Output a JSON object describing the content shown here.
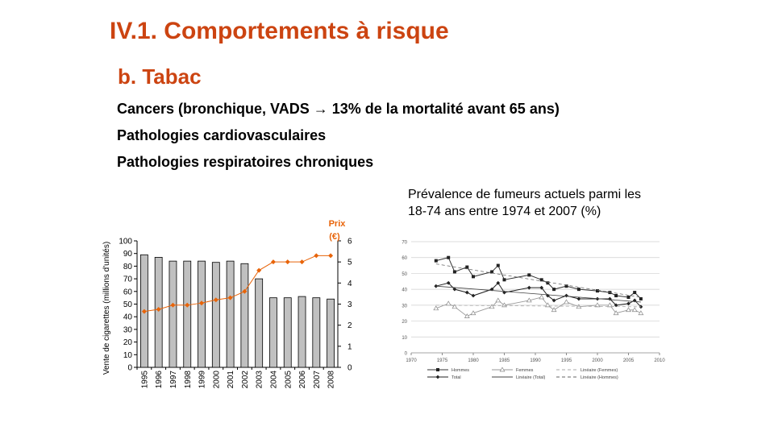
{
  "slide": {
    "title": "IV.1. Comportements à risque",
    "subtitle": "b. Tabac",
    "bullets": [
      "Cancers (bronchique, VADS → 13% de la mortalité avant 65 ans)",
      "Pathologies cardiovasculaires",
      "Pathologies respiratoires chroniques"
    ],
    "caption_right_line1": "Prévalence de fumeurs actuels parmi les",
    "caption_right_line2": "18-74 ans entre 1974 et 2007 (%)"
  },
  "colors": {
    "title": "#cc4411",
    "bar_fill": "#c0c0c0",
    "price_line": "#e8640a"
  },
  "chart_data": [
    {
      "type": "bar",
      "categories": [
        "1995",
        "1996",
        "1997",
        "1998",
        "1999",
        "2000",
        "2001",
        "2002",
        "2003",
        "2004",
        "2005",
        "2006",
        "2007",
        "2008"
      ],
      "series": [
        {
          "values": [
            89,
            87,
            84,
            84,
            84,
            83,
            84,
            82,
            70,
            55,
            55,
            56,
            55,
            54
          ]
        },
        {
          "name": "Prix (€)",
          "type": "line",
          "axis": "right",
          "values": [
            2.65,
            2.75,
            2.95,
            2.95,
            3.05,
            3.2,
            3.3,
            3.6,
            4.6,
            5.0,
            5.0,
            5.0,
            5.3,
            5.3
          ]
        }
      ],
      "ylabel": "Vente de cigarettes (millions d'unités)",
      "ylim": [
        0,
        100
      ],
      "yticks": [
        0,
        10,
        20,
        30,
        40,
        50,
        60,
        70,
        80,
        90,
        100
      ],
      "y2label": "Prix (€)",
      "y2lim": [
        0,
        6
      ],
      "y2ticks": [
        0,
        1,
        2,
        3,
        4,
        5,
        6
      ]
    },
    {
      "type": "line",
      "xlim": [
        1970,
        2010
      ],
      "xticks": [
        1970,
        1975,
        1980,
        1985,
        1990,
        1995,
        2000,
        2005,
        2010
      ],
      "ylim": [
        0,
        70
      ],
      "yticks": [
        0,
        10,
        20,
        30,
        40,
        50,
        60,
        70
      ],
      "grid": true,
      "series": [
        {
          "name": "Hommes",
          "marker": "square",
          "x": [
            1974,
            1976,
            1977,
            1979,
            1980,
            1983,
            1984,
            1985,
            1989,
            1991,
            1992,
            1993,
            1995,
            1997,
            2000,
            2002,
            2003,
            2005,
            2006,
            2007
          ],
          "y": [
            58,
            60,
            51,
            54,
            48,
            51,
            55,
            46,
            49,
            46,
            44,
            40,
            42,
            40,
            39,
            38,
            36,
            35,
            38,
            34
          ]
        },
        {
          "name": "Femmes",
          "marker": "triangle",
          "x": [
            1974,
            1976,
            1977,
            1979,
            1980,
            1983,
            1984,
            1985,
            1989,
            1991,
            1992,
            1993,
            1995,
            1997,
            2000,
            2002,
            2003,
            2005,
            2006,
            2007
          ],
          "y": [
            28,
            31,
            29,
            23,
            25,
            29,
            33,
            30,
            33,
            35,
            30,
            27,
            32,
            29,
            30,
            30,
            25,
            27,
            27,
            25
          ]
        },
        {
          "name": "Total",
          "marker": "diamond",
          "x": [
            1974,
            1976,
            1977,
            1979,
            1980,
            1983,
            1984,
            1985,
            1989,
            1991,
            1992,
            1993,
            1995,
            1997,
            2000,
            2002,
            2003,
            2005,
            2006,
            2007
          ],
          "y": [
            42,
            44,
            40,
            38,
            36,
            40,
            44,
            38,
            41,
            41,
            36,
            33,
            36,
            34,
            34,
            34,
            30,
            31,
            33,
            29
          ]
        },
        {
          "name": "Linéaire (Total)",
          "style": "solid",
          "x": [
            1974,
            2007
          ],
          "y": [
            42,
            32
          ]
        },
        {
          "name": "Linéaire (Femmes)",
          "style": "dashed",
          "x": [
            1974,
            2007
          ],
          "y": [
            30,
            29
          ]
        },
        {
          "name": "Linéaire (Hommes)",
          "style": "dashed",
          "x": [
            1974,
            2007
          ],
          "y": [
            56,
            35
          ]
        }
      ]
    }
  ]
}
